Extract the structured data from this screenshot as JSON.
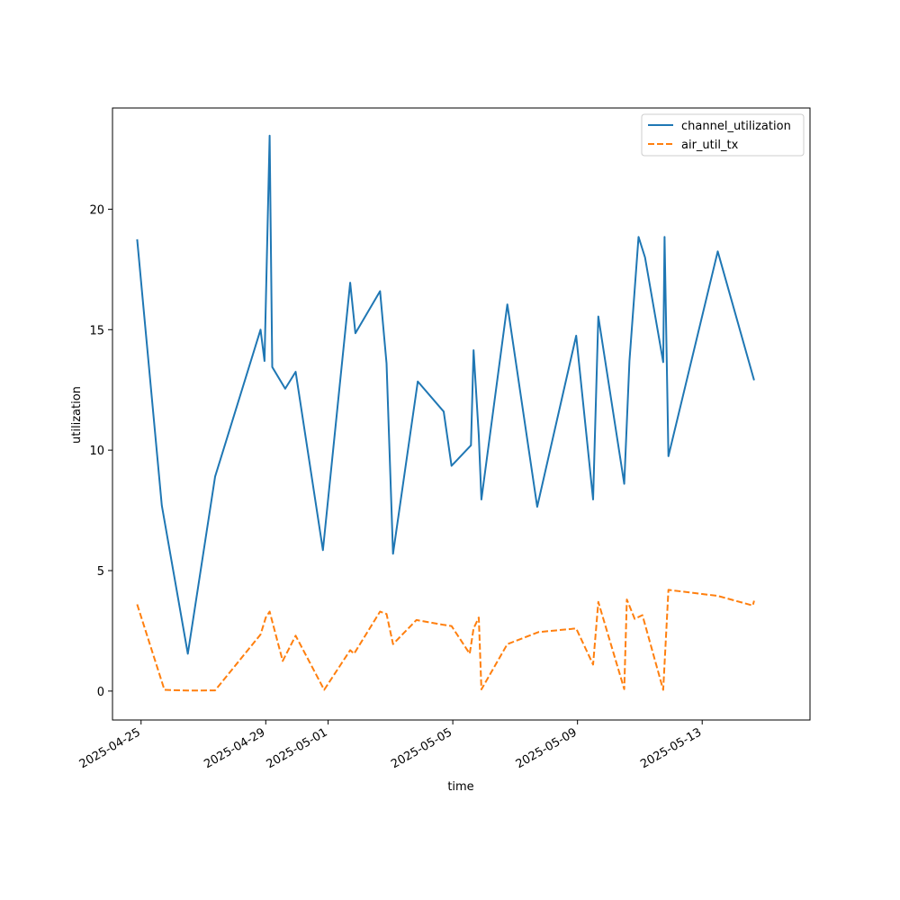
{
  "chart_data": {
    "type": "line",
    "title": "",
    "xlabel": "time",
    "ylabel": "utilization",
    "x_type": "date",
    "xlim": [
      "2025-04-24T02:00",
      "2025-05-16T11:00"
    ],
    "ylim": [
      -1.2,
      24.2
    ],
    "x_ticks": [
      "2025-04-25",
      "2025-04-29",
      "2025-05-01",
      "2025-05-05",
      "2025-05-09",
      "2025-05-13"
    ],
    "y_ticks": [
      0,
      5,
      10,
      15,
      20
    ],
    "grid": false,
    "legend": "top-right",
    "series": [
      {
        "name": "channel_utilization",
        "color": "#1f77b4",
        "dash": "solid",
        "points": [
          [
            "2025-04-24T21:00",
            18.75
          ],
          [
            "2025-04-25T16:00",
            7.7
          ],
          [
            "2025-04-26T12:00",
            1.55
          ],
          [
            "2025-04-27T09:00",
            8.9
          ],
          [
            "2025-04-28T20:00",
            15.0
          ],
          [
            "2025-04-28T23:00",
            13.7
          ],
          [
            "2025-04-29T03:00",
            23.05
          ],
          [
            "2025-04-29T05:00",
            13.45
          ],
          [
            "2025-04-29T15:00",
            12.55
          ],
          [
            "2025-04-29T23:00",
            13.25
          ],
          [
            "2025-04-30T20:00",
            5.85
          ],
          [
            "2025-05-01T17:00",
            16.95
          ],
          [
            "2025-05-01T21:00",
            14.85
          ],
          [
            "2025-05-02T16:00",
            16.6
          ],
          [
            "2025-05-02T21:00",
            13.6
          ],
          [
            "2025-05-03T02:00",
            5.7
          ],
          [
            "2025-05-03T21:00",
            12.85
          ],
          [
            "2025-05-04T17:00",
            11.6
          ],
          [
            "2025-05-04T23:00",
            9.35
          ],
          [
            "2025-05-05T14:00",
            10.2
          ],
          [
            "2025-05-05T16:00",
            14.15
          ],
          [
            "2025-05-05T20:00",
            10.6
          ],
          [
            "2025-05-05T22:00",
            7.95
          ],
          [
            "2025-05-06T18:00",
            16.05
          ],
          [
            "2025-05-07T17:00",
            7.65
          ],
          [
            "2025-05-08T23:00",
            14.75
          ],
          [
            "2025-05-09T12:00",
            7.95
          ],
          [
            "2025-05-09T16:00",
            15.55
          ],
          [
            "2025-05-10T12:00",
            8.6
          ],
          [
            "2025-05-10T16:00",
            13.7
          ],
          [
            "2025-05-10T23:00",
            18.85
          ],
          [
            "2025-05-11T04:00",
            18.0
          ],
          [
            "2025-05-11T18:00",
            13.65
          ],
          [
            "2025-05-11T19:00",
            18.85
          ],
          [
            "2025-05-11T22:00",
            9.75
          ],
          [
            "2025-05-13T12:00",
            18.25
          ],
          [
            "2025-05-14T16:00",
            12.9
          ]
        ]
      },
      {
        "name": "air_util_tx",
        "color": "#ff7f0e",
        "dash": "dashed",
        "points": [
          [
            "2025-04-24T21:00",
            3.6
          ],
          [
            "2025-04-25T18:00",
            0.05
          ],
          [
            "2025-04-26T12:00",
            0.02
          ],
          [
            "2025-04-27T09:00",
            0.03
          ],
          [
            "2025-04-28T20:00",
            2.35
          ],
          [
            "2025-04-29T00:00",
            3.05
          ],
          [
            "2025-04-29T03:00",
            3.3
          ],
          [
            "2025-04-29T13:00",
            1.25
          ],
          [
            "2025-04-29T23:00",
            2.3
          ],
          [
            "2025-04-30T21:00",
            0.05
          ],
          [
            "2025-05-01T17:00",
            1.7
          ],
          [
            "2025-05-01T20:00",
            1.55
          ],
          [
            "2025-05-02T16:00",
            3.3
          ],
          [
            "2025-05-02T21:00",
            3.2
          ],
          [
            "2025-05-03T02:00",
            1.95
          ],
          [
            "2025-05-03T20:00",
            2.95
          ],
          [
            "2025-05-04T17:00",
            2.75
          ],
          [
            "2025-05-04T23:00",
            2.7
          ],
          [
            "2025-05-05T13:00",
            1.55
          ],
          [
            "2025-05-05T16:00",
            2.6
          ],
          [
            "2025-05-05T20:00",
            3.05
          ],
          [
            "2025-05-05T22:00",
            0.07
          ],
          [
            "2025-05-06T18:00",
            1.95
          ],
          [
            "2025-05-07T18:00",
            2.45
          ],
          [
            "2025-05-08T23:00",
            2.6
          ],
          [
            "2025-05-09T12:00",
            1.1
          ],
          [
            "2025-05-09T16:00",
            3.7
          ],
          [
            "2025-05-10T12:00",
            0.08
          ],
          [
            "2025-05-10T14:00",
            3.8
          ],
          [
            "2025-05-10T20:00",
            3.0
          ],
          [
            "2025-05-11T02:00",
            3.15
          ],
          [
            "2025-05-11T18:00",
            0.05
          ],
          [
            "2025-05-11T22:00",
            4.2
          ],
          [
            "2025-05-13T12:00",
            3.95
          ],
          [
            "2025-05-14T15:00",
            3.55
          ],
          [
            "2025-05-14T16:00",
            3.75
          ]
        ]
      }
    ]
  }
}
